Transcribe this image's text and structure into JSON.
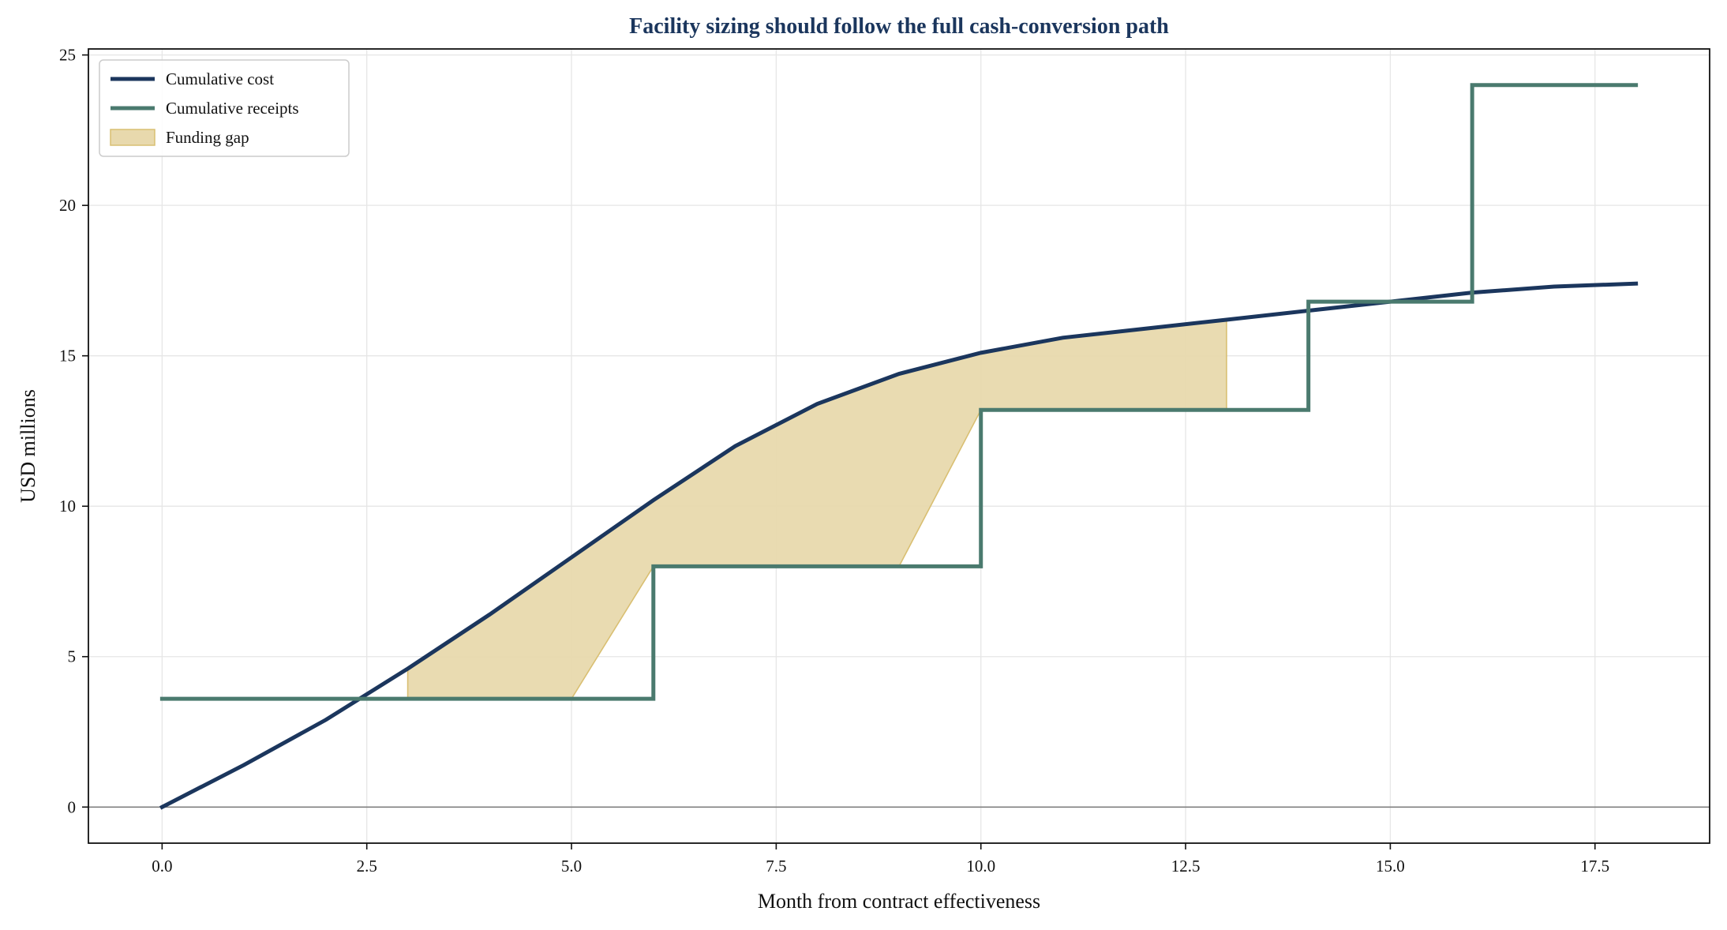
{
  "chart_data": {
    "type": "line",
    "title": "Facility sizing should follow the full cash-conversion path",
    "xlabel": "Month from contract effectiveness",
    "ylabel": "USD millions",
    "xlim": [
      -0.9,
      18.9
    ],
    "ylim": [
      -1.2,
      25.2
    ],
    "xticks": [
      0,
      2.5,
      5,
      7.5,
      10,
      12.5,
      15,
      17.5
    ],
    "xtick_labels": [
      "0.0",
      "2.5",
      "5.0",
      "7.5",
      "10.0",
      "12.5",
      "15.0",
      "17.5"
    ],
    "yticks": [
      0,
      5,
      10,
      15,
      20,
      25
    ],
    "ytick_labels": [
      "0",
      "5",
      "10",
      "15",
      "20",
      "25"
    ],
    "grid": true,
    "legend_position": "top-left",
    "series": [
      {
        "name": "Cumulative cost",
        "kind": "line",
        "color": "#1b365d",
        "x": [
          0,
          1,
          2,
          3,
          4,
          5,
          6,
          7,
          8,
          9,
          10,
          11,
          12,
          13,
          14,
          15,
          16,
          17,
          18
        ],
        "y": [
          0,
          1.4,
          2.9,
          4.6,
          6.4,
          8.3,
          10.2,
          12.0,
          13.4,
          14.4,
          15.1,
          15.6,
          15.9,
          16.2,
          16.5,
          16.8,
          17.1,
          17.3,
          17.4
        ]
      },
      {
        "name": "Cumulative receipts",
        "kind": "step",
        "color": "#4a7a6e",
        "x": [
          0,
          6,
          6,
          10,
          10,
          14,
          14,
          16,
          16,
          18
        ],
        "y": [
          3.6,
          3.6,
          8.0,
          8.0,
          13.2,
          13.2,
          16.8,
          16.8,
          24.0,
          24.0
        ]
      },
      {
        "name": "Funding gap",
        "kind": "fill",
        "color": "#e8d9ad",
        "edge_color": "#d9bf72",
        "x": [
          3,
          4,
          5,
          6,
          7,
          8,
          9,
          10,
          11,
          12,
          13
        ],
        "y_upper": [
          4.6,
          6.4,
          8.3,
          10.2,
          12.0,
          13.4,
          14.4,
          15.1,
          15.6,
          15.9,
          16.2
        ],
        "y_lower": [
          3.6,
          3.6,
          3.6,
          8.0,
          8.0,
          8.0,
          8.0,
          13.2,
          13.2,
          13.2,
          13.2
        ]
      }
    ]
  }
}
